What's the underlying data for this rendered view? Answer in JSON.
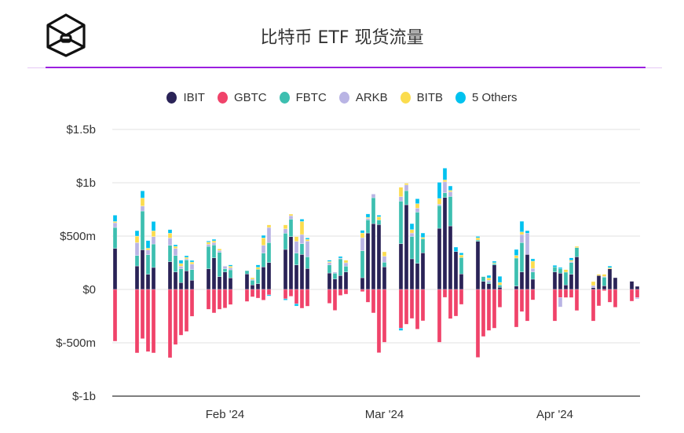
{
  "header": {
    "title": "比特币 ETF 现货流量",
    "logo": "cube-logo"
  },
  "colors": {
    "IBIT": "#2a2357",
    "GBTC": "#f0436a",
    "FBTC": "#3dbfb0",
    "ARKB": "#b9b4e4",
    "BITB": "#fbdc4e",
    "5 Others": "#00c2ef",
    "accent": "#9b1fe0"
  },
  "chart_data": {
    "type": "bar",
    "stacked": true,
    "title": "比特币 ETF 现货流量",
    "legend_position": "top",
    "grid": true,
    "ylim": [
      -1000,
      1500
    ],
    "yticks": [
      {
        "v": 1500,
        "label": "$1.5b"
      },
      {
        "v": 1000,
        "label": "$1b"
      },
      {
        "v": 500,
        "label": "$500m"
      },
      {
        "v": 0,
        "label": "$0"
      },
      {
        "v": -500,
        "label": "$-500m"
      },
      {
        "v": -1000,
        "label": "$-1b"
      }
    ],
    "xticks": [
      {
        "date": "2024-02-01",
        "label": "Feb '24"
      },
      {
        "date": "2024-03-01",
        "label": "Mar '24"
      },
      {
        "date": "2024-04-01",
        "label": "Apr '24"
      }
    ],
    "dates": [
      "2024-01-12",
      "2024-01-16",
      "2024-01-17",
      "2024-01-18",
      "2024-01-19",
      "2024-01-22",
      "2024-01-23",
      "2024-01-24",
      "2024-01-25",
      "2024-01-26",
      "2024-01-29",
      "2024-01-30",
      "2024-01-31",
      "2024-02-01",
      "2024-02-02",
      "2024-02-05",
      "2024-02-06",
      "2024-02-07",
      "2024-02-08",
      "2024-02-09",
      "2024-02-12",
      "2024-02-13",
      "2024-02-14",
      "2024-02-15",
      "2024-02-16",
      "2024-02-20",
      "2024-02-21",
      "2024-02-22",
      "2024-02-23",
      "2024-02-26",
      "2024-02-27",
      "2024-02-28",
      "2024-02-29",
      "2024-03-01",
      "2024-03-04",
      "2024-03-05",
      "2024-03-06",
      "2024-03-07",
      "2024-03-08",
      "2024-03-11",
      "2024-03-12",
      "2024-03-13",
      "2024-03-14",
      "2024-03-15",
      "2024-03-18",
      "2024-03-19",
      "2024-03-20",
      "2024-03-21",
      "2024-03-22",
      "2024-03-25",
      "2024-03-26",
      "2024-03-27",
      "2024-03-28",
      "2024-04-01",
      "2024-04-02",
      "2024-04-03",
      "2024-04-04",
      "2024-04-05",
      "2024-04-08",
      "2024-04-09",
      "2024-04-10",
      "2024-04-11",
      "2024-04-12",
      "2024-04-15",
      "2024-04-16"
    ],
    "series": [
      {
        "name": "IBIT",
        "values": [
          385,
          220,
          372,
          142,
          206,
          260,
          164,
          64,
          174,
          86,
          194,
          296,
          120,
          164,
          108,
          145,
          42,
          54,
          211,
          252,
          375,
          495,
          230,
          328,
          196,
          154,
          98,
          130,
          164,
          110,
          529,
          617,
          608,
          211,
          429,
          794,
          287,
          245,
          343,
          573,
          862,
          595,
          355,
          145,
          451,
          76,
          54,
          230,
          20,
          32,
          164,
          328,
          96,
          164,
          152,
          42,
          142,
          306,
          17,
          130,
          34,
          194,
          110,
          76,
          29
        ]
      },
      {
        "name": "GBTC",
        "values": [
          -485,
          -595,
          -461,
          -583,
          -595,
          -640,
          -517,
          -429,
          -394,
          -252,
          -186,
          -220,
          -186,
          -174,
          -142,
          -113,
          -69,
          -81,
          -100,
          -51,
          -88,
          -64,
          -135,
          -176,
          -157,
          -130,
          -196,
          -56,
          -44,
          -20,
          -120,
          -220,
          -593,
          -495,
          -363,
          -326,
          -272,
          -372,
          -294,
          -495,
          -74,
          -274,
          -250,
          -140,
          -637,
          -441,
          -385,
          -363,
          -167,
          -353,
          -208,
          -296,
          -98,
          -296,
          -76,
          -76,
          -76,
          -198,
          -296,
          -154,
          -12,
          -120,
          -167,
          -110,
          -76
        ]
      },
      {
        "name": "FBTC",
        "values": [
          196,
          98,
          363,
          184,
          220,
          154,
          154,
          130,
          103,
          100,
          210,
          121,
          228,
          30,
          76,
          31,
          44,
          135,
          130,
          187,
          152,
          164,
          111,
          101,
          110,
          76,
          54,
          157,
          54,
          253,
          123,
          243,
          44,
          44,
          399,
          132,
          210,
          480,
          132,
          213,
          44,
          277,
          0,
          154,
          12,
          44,
          12,
          13,
          22,
          262,
          275,
          0,
          68,
          47,
          42,
          120,
          110,
          86,
          0,
          0,
          81,
          0,
          0,
          0,
          0
        ]
      },
      {
        "name": "ARKB",
        "values": [
          44,
          121,
          47,
          44,
          69,
          69,
          67,
          24,
          10,
          52,
          20,
          22,
          17,
          24,
          19,
          0,
          10,
          0,
          73,
          142,
          41,
          32,
          110,
          86,
          147,
          22,
          10,
          7,
          32,
          122,
          14,
          34,
          0,
          56,
          42,
          54,
          32,
          37,
          0,
          13,
          103,
          44,
          0,
          0,
          0,
          0,
          20,
          0,
          0,
          0,
          76,
          199,
          34,
          0,
          -88,
          0,
          10,
          0,
          20,
          0,
          7,
          0,
          0,
          0,
          -12
        ]
      },
      {
        "name": "BITB",
        "values": [
          12,
          61,
          75,
          17,
          54,
          44,
          19,
          25,
          14,
          19,
          20,
          17,
          15,
          0,
          15,
          0,
          14,
          19,
          69,
          24,
          37,
          15,
          44,
          122,
          17,
          10,
          0,
          0,
          24,
          44,
          10,
          0,
          29,
          42,
          88,
          15,
          32,
          42,
          13,
          54,
          18,
          13,
          0,
          24,
          22,
          0,
          22,
          7,
          24,
          25,
          24,
          0,
          67,
          0,
          0,
          24,
          12,
          12,
          37,
          12,
          20,
          10,
          0,
          0,
          0
        ]
      },
      {
        "name": "5 Others",
        "values": [
          59,
          51,
          67,
          71,
          88,
          34,
          15,
          31,
          15,
          15,
          10,
          14,
          0,
          0,
          12,
          0,
          0,
          22,
          24,
          -10,
          -12,
          0,
          -20,
          22,
          13,
          12,
          0,
          15,
          0,
          25,
          32,
          0,
          15,
          0,
          -22,
          0,
          56,
          46,
          41,
          151,
          110,
          41,
          42,
          20,
          12,
          0,
          24,
          15,
          57,
          56,
          100,
          24,
          22,
          15,
          12,
          0,
          22,
          0,
          0,
          0,
          0,
          15,
          0,
          0,
          0
        ]
      }
    ]
  }
}
